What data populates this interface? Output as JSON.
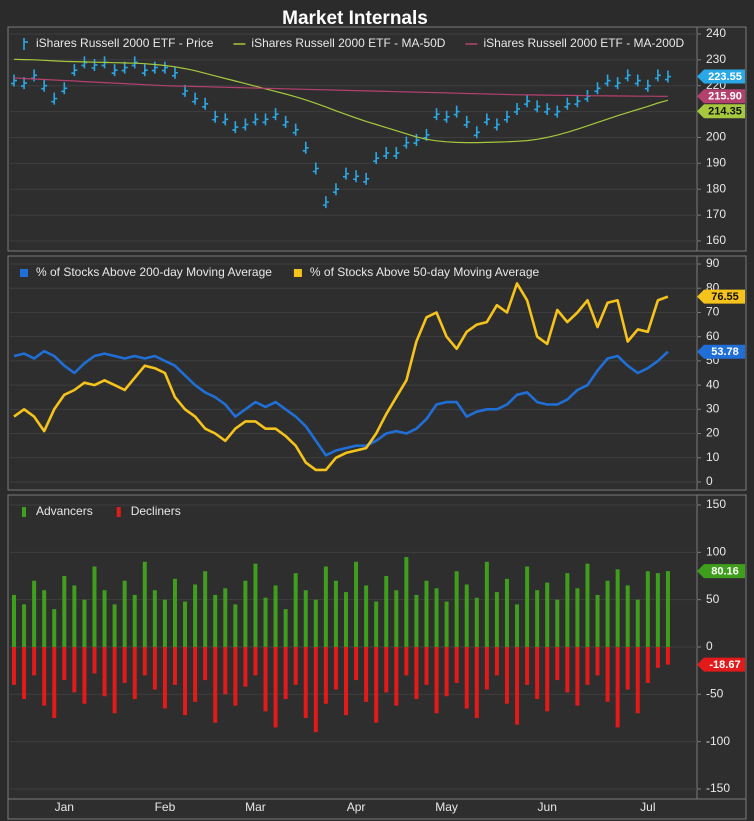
{
  "chart_data": [
    {
      "type": "line",
      "title": "Market Internals",
      "ylim": [
        156.5,
        242.3
      ],
      "yticks": [
        160,
        170,
        180,
        190,
        200,
        210,
        220,
        230,
        240
      ],
      "grid": true,
      "series": [
        {
          "name": "iShares Russell 2000 ETF - Price",
          "kind": "ohlc",
          "color": "#2aa8e6",
          "values": [
            222,
            221,
            224,
            220,
            215,
            219,
            226,
            229,
            228,
            229,
            226,
            227,
            229,
            226,
            227,
            227,
            225,
            218,
            215,
            213,
            208,
            207,
            204,
            205,
            207,
            207,
            209,
            206,
            203,
            196,
            188,
            175,
            180,
            186,
            185,
            184,
            192,
            194,
            194,
            198,
            199,
            201,
            209,
            208,
            210,
            206,
            202,
            207,
            205,
            208,
            211,
            214,
            212,
            211,
            210,
            213,
            214,
            216,
            219,
            222,
            221,
            224,
            222,
            220,
            224,
            223.55
          ]
        },
        {
          "name": "iShares Russell 2000 ETF - MA-50D",
          "kind": "line",
          "color": "#a6c83c",
          "values": [
            230.2,
            230.1,
            230,
            229.8,
            229.6,
            229.4,
            229.3,
            229.2,
            229.1,
            229,
            228.9,
            228.8,
            228.7,
            228.5,
            228.2,
            227.8,
            227.3,
            226.6,
            225.8,
            224.8,
            223.8,
            222.8,
            221.8,
            220.8,
            219.8,
            218.8,
            217.8,
            216.8,
            215.7,
            214.5,
            213.2,
            211.8,
            210.3,
            208.9,
            207.5,
            206.2,
            205,
            203.8,
            202.6,
            201.4,
            200.2,
            199.3,
            198.7,
            198.3,
            198.1,
            198,
            198,
            198.1,
            198.2,
            198.3,
            198.5,
            198.8,
            199.3,
            200,
            200.9,
            202,
            203.2,
            204.5,
            205.8,
            207.1,
            208.4,
            209.6,
            210.8,
            212,
            213.3,
            214.35
          ]
        },
        {
          "name": "iShares Russell 2000 ETF - MA-200D",
          "kind": "line",
          "color": "#b4406e",
          "values": [
            223.0,
            222.8,
            222.6,
            222.4,
            222.2,
            222.0,
            221.8,
            221.6,
            221.4,
            221.2,
            221.0,
            220.8,
            220.6,
            220.4,
            220.2,
            220.0,
            219.9,
            219.8,
            219.7,
            219.6,
            219.5,
            219.4,
            219.3,
            219.2,
            219.1,
            219.0,
            218.9,
            218.8,
            218.7,
            218.6,
            218.5,
            218.4,
            218.3,
            218.2,
            218.1,
            218.0,
            217.9,
            217.8,
            217.7,
            217.6,
            217.5,
            217.4,
            217.3,
            217.2,
            217.1,
            217.0,
            216.9,
            216.8,
            216.7,
            216.6,
            216.5,
            216.45,
            216.4,
            216.35,
            216.3,
            216.25,
            216.2,
            216.15,
            216.1,
            216.05,
            216.0,
            216.0,
            215.95,
            215.95,
            215.9,
            215.9
          ],
          "value_labels": [
            null,
            null,
            null,
            null,
            null,
            null,
            null,
            null,
            null,
            null,
            null,
            null,
            null,
            null,
            null,
            null,
            null,
            null,
            null,
            null,
            null,
            null,
            null,
            null,
            null,
            null,
            null,
            null,
            null,
            null,
            null,
            null,
            null,
            null,
            null,
            null,
            null,
            null,
            null,
            null,
            null,
            null,
            null,
            null,
            null,
            null,
            null,
            null,
            null,
            null,
            null,
            null,
            null,
            null,
            null,
            null,
            null,
            null,
            null,
            null,
            null,
            null,
            null,
            null,
            null,
            "215.90"
          ]
        }
      ]
    },
    {
      "type": "line",
      "legend_icon": "square",
      "ylim": [
        -2.9,
        92.9
      ],
      "yticks": [
        0,
        10,
        20,
        30,
        40,
        50,
        60,
        70,
        80,
        90
      ],
      "grid": true,
      "series": [
        {
          "name": "% of Stocks Above 200-day Moving Average",
          "kind": "line",
          "color": "#1f6fd6",
          "values": [
            52,
            53,
            51,
            54,
            52,
            48,
            45,
            49,
            52,
            53,
            52,
            51,
            52,
            51,
            52,
            50,
            48,
            44,
            40,
            37,
            35,
            32,
            27,
            30,
            33,
            31,
            33,
            30,
            27,
            23,
            17,
            11,
            13,
            14,
            15,
            15,
            17,
            20,
            21,
            20,
            22,
            26,
            32,
            33,
            33,
            27,
            29,
            30,
            30,
            32,
            36,
            37,
            33,
            32,
            32,
            34,
            38,
            40,
            46,
            51,
            52,
            48,
            45,
            47,
            50,
            53.78
          ]
        },
        {
          "name": "% of Stocks Above 50-day Moving Average",
          "kind": "line",
          "color": "#f6c31c",
          "values": [
            27,
            30,
            27,
            21,
            30,
            36,
            38,
            41,
            40,
            42,
            40,
            38,
            43,
            48,
            47,
            45,
            35,
            30,
            27,
            22,
            20,
            17,
            22,
            25,
            25,
            22,
            22,
            19,
            15,
            8,
            5,
            5,
            10,
            12,
            13,
            14,
            20,
            28,
            35,
            42,
            58,
            68,
            70,
            60,
            55,
            62,
            65,
            66,
            73,
            70,
            82,
            75,
            60,
            57,
            71,
            66,
            70,
            75,
            64,
            74,
            75,
            58,
            63,
            62,
            75,
            76.55
          ]
        }
      ]
    },
    {
      "type": "bar",
      "ylim": [
        -160.6,
        159.5
      ],
      "yticks": [
        -150,
        -100,
        -50,
        0,
        50,
        100,
        150
      ],
      "grid": true,
      "categories": [
        null,
        null,
        null,
        null,
        null,
        "Jan",
        null,
        null,
        null,
        null,
        null,
        null,
        null,
        null,
        null,
        "Feb",
        null,
        null,
        null,
        null,
        null,
        null,
        null,
        null,
        "Mar",
        null,
        null,
        null,
        null,
        null,
        null,
        null,
        null,
        null,
        "Apr",
        null,
        null,
        null,
        null,
        null,
        null,
        null,
        null,
        "May",
        null,
        null,
        null,
        null,
        null,
        null,
        null,
        null,
        null,
        "Jun",
        null,
        null,
        null,
        null,
        null,
        null,
        null,
        null,
        null,
        "Jul",
        null,
        null
      ],
      "series": [
        {
          "name": "Advancers",
          "color": "#3f9e1c",
          "values": [
            55,
            45,
            70,
            60,
            40,
            75,
            65,
            50,
            85,
            60,
            45,
            70,
            55,
            90,
            60,
            50,
            72,
            48,
            66,
            80,
            55,
            62,
            45,
            70,
            88,
            52,
            65,
            40,
            78,
            60,
            50,
            85,
            70,
            58,
            90,
            65,
            48,
            75,
            60,
            95,
            55,
            70,
            62,
            48,
            80,
            66,
            52,
            90,
            58,
            72,
            45,
            85,
            60,
            68,
            50,
            78,
            62,
            88,
            55,
            70,
            82,
            65,
            50,
            80,
            78,
            80.16
          ]
        },
        {
          "name": "Decliners",
          "color": "#e21a1a",
          "values": [
            -40,
            -55,
            -30,
            -62,
            -75,
            -35,
            -48,
            -60,
            -28,
            -52,
            -70,
            -38,
            -55,
            -30,
            -45,
            -65,
            -40,
            -72,
            -58,
            -35,
            -80,
            -50,
            -62,
            -42,
            -30,
            -68,
            -85,
            -55,
            -40,
            -75,
            -90,
            -60,
            -45,
            -72,
            -35,
            -58,
            -80,
            -48,
            -62,
            -30,
            -55,
            -40,
            -70,
            -52,
            -38,
            -65,
            -75,
            -45,
            -30,
            -60,
            -82,
            -40,
            -55,
            -68,
            -35,
            -48,
            -62,
            -40,
            -30,
            -58,
            -85,
            -45,
            -70,
            -38,
            -22,
            -18.67
          ]
        }
      ]
    }
  ]
}
